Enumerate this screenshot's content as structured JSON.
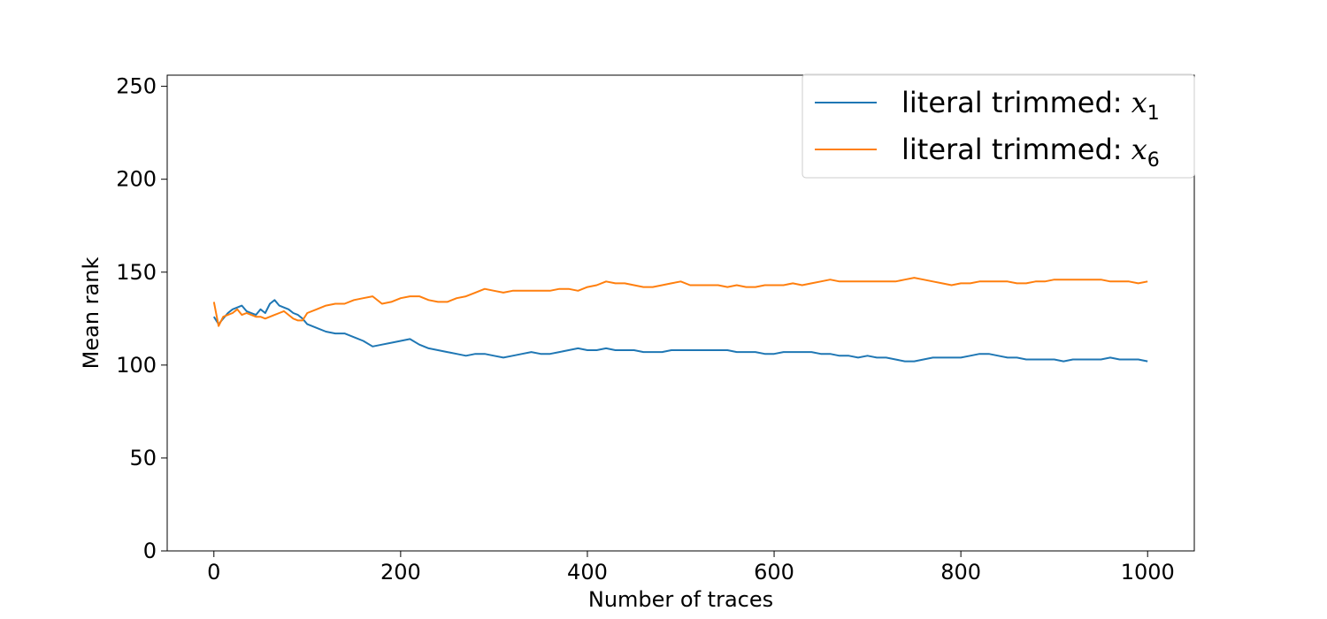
{
  "chart_data": {
    "type": "line",
    "title": "",
    "xlabel": "Number of traces",
    "ylabel": "Mean rank",
    "xlim": [
      -50,
      1050
    ],
    "ylim": [
      0,
      256
    ],
    "xticks": [
      0,
      200,
      400,
      600,
      800,
      1000
    ],
    "yticks": [
      0,
      50,
      100,
      150,
      200,
      250
    ],
    "xtick_labels": [
      "0",
      "200",
      "400",
      "600",
      "800",
      "1000"
    ],
    "ytick_labels": [
      "0",
      "50",
      "100",
      "150",
      "200",
      "250"
    ],
    "grid": false,
    "legend_position": "top-right",
    "series": [
      {
        "name": "literal trimmed: x1",
        "legend_text": "literal trimmed: ",
        "legend_math": "x",
        "legend_sub": "1",
        "color": "#1f77b4",
        "x": [
          0,
          5,
          10,
          15,
          20,
          25,
          30,
          35,
          40,
          45,
          50,
          55,
          60,
          65,
          70,
          75,
          80,
          85,
          90,
          95,
          100,
          110,
          120,
          130,
          140,
          150,
          160,
          170,
          180,
          190,
          200,
          210,
          220,
          230,
          240,
          250,
          260,
          270,
          280,
          290,
          300,
          310,
          320,
          330,
          340,
          350,
          360,
          370,
          380,
          390,
          400,
          410,
          420,
          430,
          440,
          450,
          460,
          470,
          480,
          490,
          500,
          510,
          520,
          530,
          540,
          550,
          560,
          570,
          580,
          590,
          600,
          610,
          620,
          630,
          640,
          650,
          660,
          670,
          680,
          690,
          700,
          710,
          720,
          730,
          740,
          750,
          760,
          770,
          780,
          790,
          800,
          810,
          820,
          830,
          840,
          850,
          860,
          870,
          880,
          890,
          900,
          910,
          920,
          930,
          940,
          950,
          960,
          970,
          980,
          990,
          1000
        ],
        "y": [
          126,
          122,
          125,
          128,
          130,
          131,
          132,
          129,
          128,
          127,
          130,
          128,
          133,
          135,
          132,
          131,
          130,
          128,
          127,
          125,
          122,
          120,
          118,
          117,
          117,
          115,
          113,
          110,
          111,
          112,
          113,
          114,
          111,
          109,
          108,
          107,
          106,
          105,
          106,
          106,
          105,
          104,
          105,
          106,
          107,
          106,
          106,
          107,
          108,
          109,
          108,
          108,
          109,
          108,
          108,
          108,
          107,
          107,
          107,
          108,
          108,
          108,
          108,
          108,
          108,
          108,
          107,
          107,
          107,
          106,
          106,
          107,
          107,
          107,
          107,
          106,
          106,
          105,
          105,
          104,
          105,
          104,
          104,
          103,
          102,
          102,
          103,
          104,
          104,
          104,
          104,
          105,
          106,
          106,
          105,
          104,
          104,
          103,
          103,
          103,
          103,
          102,
          103,
          103,
          103,
          103,
          104,
          103,
          103,
          103,
          102
        ]
      },
      {
        "name": "literal trimmed: x6",
        "legend_text": "literal trimmed: ",
        "legend_math": "x",
        "legend_sub": "6",
        "color": "#ff7f0e",
        "x": [
          0,
          5,
          10,
          15,
          20,
          25,
          30,
          35,
          40,
          45,
          50,
          55,
          60,
          65,
          70,
          75,
          80,
          85,
          90,
          95,
          100,
          110,
          120,
          130,
          140,
          150,
          160,
          170,
          180,
          190,
          200,
          210,
          220,
          230,
          240,
          250,
          260,
          270,
          280,
          290,
          300,
          310,
          320,
          330,
          340,
          350,
          360,
          370,
          380,
          390,
          400,
          410,
          420,
          430,
          440,
          450,
          460,
          470,
          480,
          490,
          500,
          510,
          520,
          530,
          540,
          550,
          560,
          570,
          580,
          590,
          600,
          610,
          620,
          630,
          640,
          650,
          660,
          670,
          680,
          690,
          700,
          710,
          720,
          730,
          740,
          750,
          760,
          770,
          780,
          790,
          800,
          810,
          820,
          830,
          840,
          850,
          860,
          870,
          880,
          890,
          900,
          910,
          920,
          930,
          940,
          950,
          960,
          970,
          980,
          990,
          1000
        ],
        "y": [
          134,
          121,
          126,
          127,
          128,
          130,
          127,
          128,
          127,
          126,
          126,
          125,
          126,
          127,
          128,
          129,
          127,
          125,
          124,
          124,
          128,
          130,
          132,
          133,
          133,
          135,
          136,
          137,
          133,
          134,
          136,
          137,
          137,
          135,
          134,
          134,
          136,
          137,
          139,
          141,
          140,
          139,
          140,
          140,
          140,
          140,
          140,
          141,
          141,
          140,
          142,
          143,
          145,
          144,
          144,
          143,
          142,
          142,
          143,
          144,
          145,
          143,
          143,
          143,
          143,
          142,
          143,
          142,
          142,
          143,
          143,
          143,
          144,
          143,
          144,
          145,
          146,
          145,
          145,
          145,
          145,
          145,
          145,
          145,
          146,
          147,
          146,
          145,
          144,
          143,
          144,
          144,
          145,
          145,
          145,
          145,
          144,
          144,
          145,
          145,
          146,
          146,
          146,
          146,
          146,
          146,
          145,
          145,
          145,
          144,
          145
        ]
      }
    ]
  }
}
